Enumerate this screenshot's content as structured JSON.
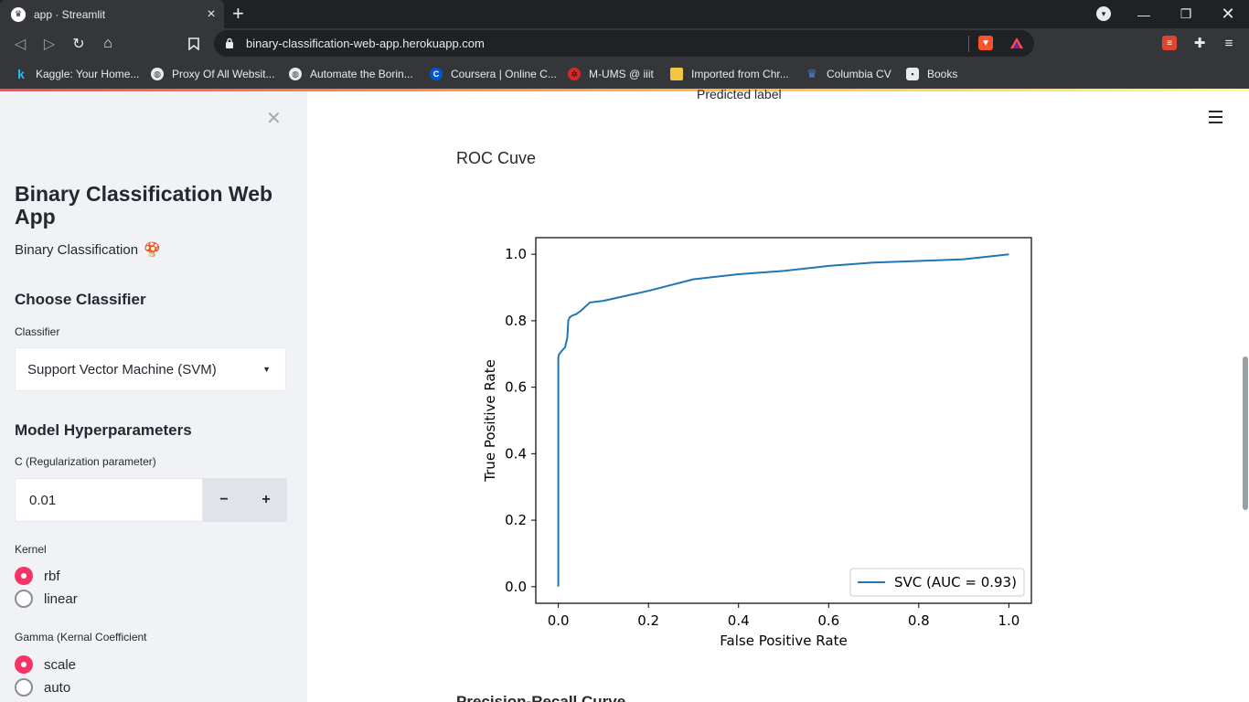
{
  "browser": {
    "tab_title": "app · Streamlit",
    "tab_close": "×",
    "new_tab": "+",
    "url": "binary-classification-web-app.herokuapp.com",
    "bookmarks": [
      {
        "label": "Kaggle: Your Home...",
        "icon": "kaggle-icon"
      },
      {
        "label": "Proxy Of All Websit...",
        "icon": "globe-icon"
      },
      {
        "label": "Automate the Borin...",
        "icon": "globe-icon"
      },
      {
        "label": "Coursera | Online C...",
        "icon": "coursera-icon"
      },
      {
        "label": "M-UMS @ iiit",
        "icon": "bug-icon"
      },
      {
        "label": "Imported from Chr...",
        "icon": "folder-icon"
      },
      {
        "label": "Columbia CV",
        "icon": "crown-icon"
      },
      {
        "label": "Books",
        "icon": "books-icon"
      }
    ]
  },
  "sidebar": {
    "title": "Binary Classification Web App",
    "subtitle": "Binary Classification",
    "subtitle_emoji": "🍄",
    "choose_heading": "Choose Classifier",
    "classifier_label": "Classifier",
    "classifier_value": "Support Vector Machine (SVM)",
    "hyper_heading": "Model Hyperparameters",
    "c_label": "C (Regularization parameter)",
    "c_value": "0.01",
    "minus": "−",
    "plus": "+",
    "kernel_label": "Kernel",
    "kernel_options": [
      "rbf",
      "linear"
    ],
    "kernel_selected": "rbf",
    "gamma_label": "Gamma (Kernal Coefficient",
    "gamma_options": [
      "scale",
      "auto"
    ],
    "gamma_selected": "scale"
  },
  "main": {
    "prev_fragment": "Predicted label",
    "section_title": "ROC Cuve",
    "next_fragment": "Precision-Recall Curve"
  },
  "colors": {
    "accent": "#f63366",
    "series": "#1f77b4"
  },
  "chart_data": {
    "type": "line",
    "title": "",
    "xlabel": "False Positive Rate",
    "ylabel": "True Positive Rate",
    "xlim": [
      -0.05,
      1.05
    ],
    "ylim": [
      -0.05,
      1.05
    ],
    "xticks": [
      0.0,
      0.2,
      0.4,
      0.6,
      0.8,
      1.0
    ],
    "yticks": [
      0.0,
      0.2,
      0.4,
      0.6,
      0.8,
      1.0
    ],
    "tick_labels": [
      "0.0",
      "0.2",
      "0.4",
      "0.6",
      "0.8",
      "1.0"
    ],
    "legend_position": "lower-right",
    "series": [
      {
        "name": "SVC (AUC = 0.93)",
        "x": [
          0.0,
          0.0,
          0.002,
          0.005,
          0.008,
          0.015,
          0.02,
          0.022,
          0.025,
          0.03,
          0.04,
          0.05,
          0.07,
          0.1,
          0.15,
          0.2,
          0.3,
          0.4,
          0.5,
          0.6,
          0.7,
          0.8,
          0.9,
          1.0
        ],
        "y": [
          0.0,
          0.69,
          0.7,
          0.705,
          0.71,
          0.72,
          0.75,
          0.8,
          0.81,
          0.815,
          0.82,
          0.83,
          0.855,
          0.86,
          0.875,
          0.89,
          0.925,
          0.94,
          0.95,
          0.965,
          0.975,
          0.98,
          0.985,
          1.0
        ]
      }
    ]
  }
}
